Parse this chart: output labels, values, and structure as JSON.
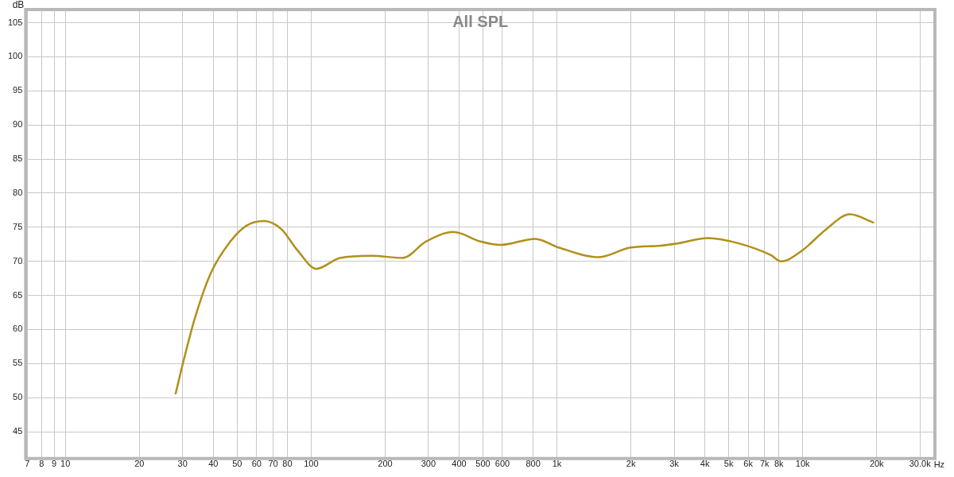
{
  "chart_data": {
    "type": "line",
    "title": "All SPL",
    "xlabel": "Hz",
    "ylabel": "dB",
    "log": "x",
    "grid": true,
    "legend": false,
    "marker": "none",
    "line_style": "solid",
    "xlim": [
      7,
      34000
    ],
    "ylim": [
      41.3,
      106.7
    ],
    "xticks": [
      7,
      8,
      9,
      10,
      20,
      30,
      40,
      50,
      60,
      70,
      80,
      100,
      200,
      300,
      400,
      500,
      600,
      800,
      {
        "value": 1000,
        "label": "1k"
      },
      {
        "value": 2000,
        "label": "2k"
      },
      {
        "value": 3000,
        "label": "3k"
      },
      {
        "value": 4000,
        "label": "4k"
      },
      {
        "value": 5000,
        "label": "5k"
      },
      {
        "value": 6000,
        "label": "6k"
      },
      {
        "value": 7000,
        "label": "7k"
      },
      {
        "value": 8000,
        "label": "8k"
      },
      {
        "value": 10000,
        "label": "10k"
      },
      {
        "value": 20000,
        "label": "20k"
      },
      {
        "value": 30000,
        "label": "30.0k"
      }
    ],
    "yticks": [
      45,
      50,
      55,
      60,
      65,
      70,
      75,
      80,
      85,
      90,
      95,
      100,
      105
    ],
    "series": [
      {
        "color": "#b0901a",
        "x": [
          28.1,
          30.3,
          33.8,
          39.1,
          46.9,
          54.4,
          64.4,
          75.7,
          87.6,
          105,
          131,
          176,
          236,
          293,
          379,
          489,
          587,
          816,
          1020,
          1475,
          1978,
          2650,
          3060,
          4120,
          5530,
          7420,
          8170,
          9960,
          12450,
          15550,
          19380
        ],
        "values": [
          50.6,
          55.5,
          61.9,
          68.3,
          72.9,
          75.2,
          75.9,
          74.7,
          71.7,
          68.9,
          70.5,
          70.8,
          70.5,
          72.9,
          74.3,
          72.9,
          72.4,
          73.3,
          72.0,
          70.6,
          72.0,
          72.3,
          72.6,
          73.4,
          72.6,
          70.9,
          70.0,
          71.6,
          74.7,
          76.9,
          75.7
        ]
      }
    ]
  }
}
